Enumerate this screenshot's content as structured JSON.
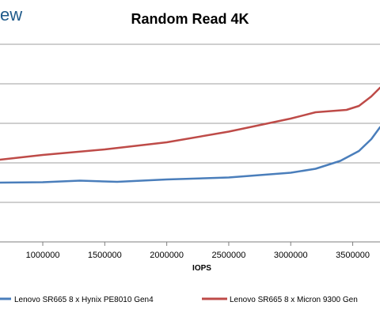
{
  "watermark": "ew",
  "chart_data": {
    "type": "line",
    "title": "Random Read 4K",
    "xlabel": "IOPS",
    "ylabel": "",
    "xlim": [
      655000,
      3720000
    ],
    "ylim": [
      0,
      6
    ],
    "x_ticks": [
      1000000,
      1500000,
      2000000,
      2500000,
      3000000,
      3500000
    ],
    "x_tick_labels": [
      "1000000",
      "1500000",
      "2000000",
      "2500000",
      "3000000",
      "3500000"
    ],
    "y_gridlines": [
      1,
      2,
      3,
      4,
      5
    ],
    "grid": true,
    "legend": "bottom",
    "series": [
      {
        "name": "Lenovo SR665 8 x Hynix PE8010 Gen4",
        "color": "#4a7ebb",
        "x": [
          655000,
          1000000,
          1300000,
          1600000,
          2000000,
          2500000,
          3000000,
          3200000,
          3400000,
          3550000,
          3650000,
          3720000
        ],
        "y": [
          1.5,
          1.51,
          1.55,
          1.52,
          1.58,
          1.63,
          1.75,
          1.85,
          2.05,
          2.3,
          2.6,
          2.9
        ]
      },
      {
        "name": "Lenovo SR665 8 x Micron 9300 Gen",
        "color": "#be4b48",
        "x": [
          655000,
          1000000,
          1500000,
          2000000,
          2500000,
          3000000,
          3200000,
          3450000,
          3550000,
          3650000,
          3720000
        ],
        "y": [
          2.08,
          2.2,
          2.34,
          2.52,
          2.79,
          3.12,
          3.28,
          3.34,
          3.44,
          3.68,
          3.9
        ]
      }
    ]
  }
}
